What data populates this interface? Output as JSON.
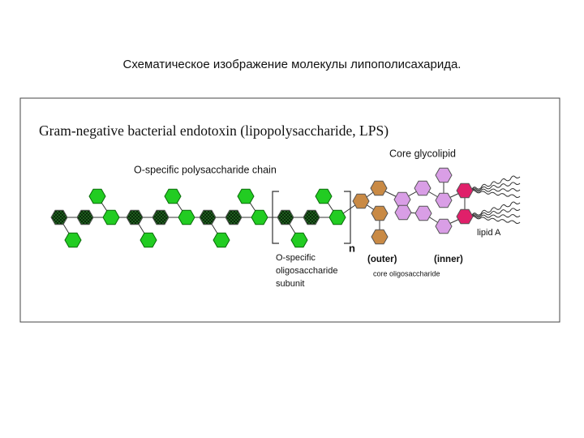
{
  "header": {
    "title": "Схематическое изображение молекулы липополисахарида."
  },
  "figure": {
    "title": "Gram-negative bacterial endotoxin (lipopolysaccharide, LPS)",
    "labels": {
      "core_glycolipid": "Core glycolipid",
      "o_chain": "O-specific polysaccharide chain",
      "lipid_a": "lipid A",
      "n": "n",
      "outer": "(outer)",
      "inner": "(inner)",
      "core_oligo": "core oligosaccharide",
      "subunit": [
        "O-specific",
        "oligosaccharide",
        "subunit"
      ]
    }
  }
}
